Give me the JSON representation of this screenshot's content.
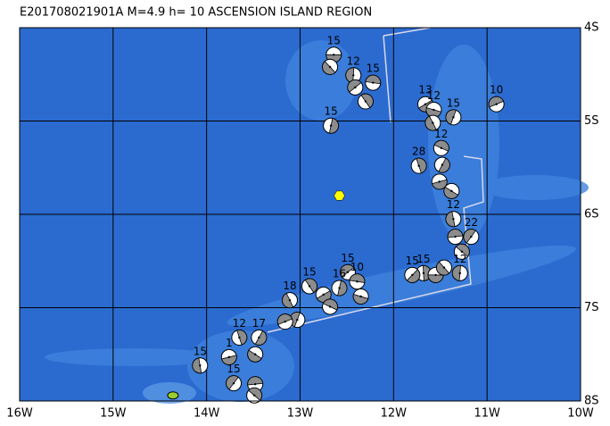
{
  "title": "E201708021901A  M=4.9  h= 10  ASCENSION ISLAND REGION",
  "map": {
    "lonlim": [
      -16,
      -10
    ],
    "latlim": [
      -4,
      -8
    ],
    "lon_ticks": [
      {
        "value": -16,
        "label": "16W"
      },
      {
        "value": -15,
        "label": "15W"
      },
      {
        "value": -14,
        "label": "14W"
      },
      {
        "value": -13,
        "label": "13W"
      },
      {
        "value": -12,
        "label": "12W"
      },
      {
        "value": -11,
        "label": "11W"
      },
      {
        "value": -10,
        "label": "10W"
      }
    ],
    "lat_ticks": [
      {
        "value": -4,
        "label": "4S"
      },
      {
        "value": -5,
        "label": "5S"
      },
      {
        "value": -6,
        "label": "6S"
      },
      {
        "value": -7,
        "label": "7S"
      },
      {
        "value": -8,
        "label": "8S"
      }
    ],
    "epicenter": {
      "lon": -12.58,
      "lat": -5.8
    },
    "station": {
      "lon": -14.36,
      "lat": -7.94
    },
    "events": [
      {
        "lon": -12.64,
        "lat": -4.29,
        "label": "15"
      },
      {
        "lon": -12.68,
        "lat": -4.42,
        "label": null
      },
      {
        "lon": -12.43,
        "lat": -4.51,
        "label": "12"
      },
      {
        "lon": -12.41,
        "lat": -4.64,
        "label": null
      },
      {
        "lon": -12.22,
        "lat": -4.59,
        "label": "15"
      },
      {
        "lon": -12.3,
        "lat": -4.79,
        "label": null
      },
      {
        "lon": -12.67,
        "lat": -5.05,
        "label": "15"
      },
      {
        "lon": -11.66,
        "lat": -4.82,
        "label": "13"
      },
      {
        "lon": -11.57,
        "lat": -4.88,
        "label": "12"
      },
      {
        "lon": -11.58,
        "lat": -5.02,
        "label": null
      },
      {
        "lon": -11.36,
        "lat": -4.96,
        "label": "15"
      },
      {
        "lon": -10.9,
        "lat": -4.82,
        "label": "10"
      },
      {
        "lon": -11.49,
        "lat": -5.29,
        "label": "12"
      },
      {
        "lon": -11.73,
        "lat": -5.48,
        "label": "28"
      },
      {
        "lon": -11.48,
        "lat": -5.47,
        "label": null
      },
      {
        "lon": -11.51,
        "lat": -5.65,
        "label": null
      },
      {
        "lon": -11.38,
        "lat": -5.75,
        "label": null
      },
      {
        "lon": -11.36,
        "lat": -6.05,
        "label": "12"
      },
      {
        "lon": -11.17,
        "lat": -6.24,
        "label": "22"
      },
      {
        "lon": -11.34,
        "lat": -6.24,
        "label": null
      },
      {
        "lon": -11.27,
        "lat": -6.4,
        "label": null
      },
      {
        "lon": -11.68,
        "lat": -6.63,
        "label": "15"
      },
      {
        "lon": -11.8,
        "lat": -6.65,
        "label": "15"
      },
      {
        "lon": -11.55,
        "lat": -6.65,
        "label": null
      },
      {
        "lon": -11.46,
        "lat": -6.57,
        "label": null
      },
      {
        "lon": -11.29,
        "lat": -6.63,
        "label": "12"
      },
      {
        "lon": -12.49,
        "lat": -6.62,
        "label": "15"
      },
      {
        "lon": -12.39,
        "lat": -6.72,
        "label": "10"
      },
      {
        "lon": -12.9,
        "lat": -6.77,
        "label": "15"
      },
      {
        "lon": -12.58,
        "lat": -6.79,
        "label": "16"
      },
      {
        "lon": -12.75,
        "lat": -6.86,
        "label": null
      },
      {
        "lon": -12.35,
        "lat": -6.88,
        "label": null
      },
      {
        "lon": -13.11,
        "lat": -6.92,
        "label": "18"
      },
      {
        "lon": -13.03,
        "lat": -7.13,
        "label": null
      },
      {
        "lon": -13.16,
        "lat": -7.15,
        "label": null
      },
      {
        "lon": -12.68,
        "lat": -6.99,
        "label": null
      },
      {
        "lon": -13.65,
        "lat": -7.32,
        "label": "12"
      },
      {
        "lon": -13.44,
        "lat": -7.32,
        "label": "17"
      },
      {
        "lon": -13.76,
        "lat": -7.53,
        "label": "1"
      },
      {
        "lon": -13.48,
        "lat": -7.5,
        "label": null
      },
      {
        "lon": -14.07,
        "lat": -7.62,
        "label": "15"
      },
      {
        "lon": -13.71,
        "lat": -7.81,
        "label": "15"
      },
      {
        "lon": -13.48,
        "lat": -7.82,
        "label": null
      },
      {
        "lon": -13.49,
        "lat": -7.94,
        "label": null
      }
    ]
  }
}
